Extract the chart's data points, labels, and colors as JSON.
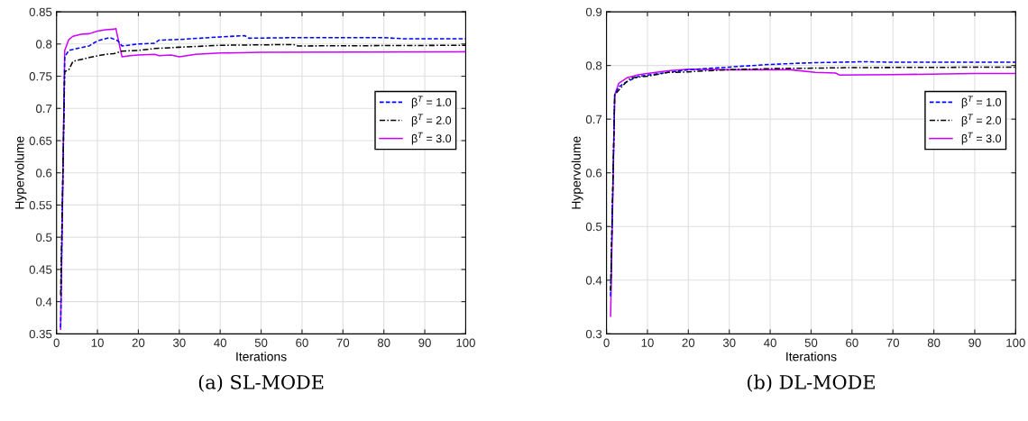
{
  "chart_data": [
    {
      "type": "line",
      "title": "(a) SL-MODE",
      "xlabel": "Iterations",
      "ylabel": "Hypervolume",
      "xlim": [
        0,
        100
      ],
      "xticks": [
        0,
        10,
        20,
        30,
        40,
        50,
        60,
        70,
        80,
        90,
        100
      ],
      "ylim": [
        0.35,
        0.85
      ],
      "yticks": [
        0.35,
        0.4,
        0.45,
        0.5,
        0.55,
        0.6,
        0.65,
        0.7,
        0.75,
        0.8,
        0.85
      ],
      "grid": true,
      "legend": "right",
      "series": [
        {
          "name": "β$^{T}$ = 1.0",
          "color": "#0000ff",
          "line_style": "dashed",
          "x": [
            1,
            2,
            3,
            5,
            8,
            10,
            13,
            15,
            16,
            20,
            24,
            25,
            30,
            40,
            46,
            47,
            60,
            70,
            80,
            85,
            100
          ],
          "values": [
            0.36,
            0.78,
            0.79,
            0.793,
            0.797,
            0.805,
            0.81,
            0.805,
            0.797,
            0.8,
            0.801,
            0.806,
            0.807,
            0.811,
            0.813,
            0.809,
            0.81,
            0.81,
            0.81,
            0.808,
            0.808
          ]
        },
        {
          "name": "β$^{T}$ = 2.0",
          "color": "#000000",
          "line_style": "dashdot",
          "x": [
            1,
            2,
            3,
            4,
            8,
            12,
            14,
            16,
            20,
            24,
            30,
            40,
            55,
            58,
            59,
            100
          ],
          "values": [
            0.41,
            0.757,
            0.76,
            0.773,
            0.779,
            0.784,
            0.785,
            0.789,
            0.79,
            0.793,
            0.795,
            0.798,
            0.799,
            0.799,
            0.797,
            0.798
          ]
        },
        {
          "name": "β$^{T}$ = 3.0",
          "color": "#cc00ff",
          "line_style": "solid",
          "x": [
            1,
            2,
            3,
            4,
            6,
            8,
            10,
            12,
            14,
            14.5,
            16,
            18,
            20,
            24,
            25,
            28,
            30,
            34,
            40,
            50,
            100
          ],
          "values": [
            0.357,
            0.79,
            0.807,
            0.812,
            0.815,
            0.816,
            0.82,
            0.822,
            0.823,
            0.824,
            0.78,
            0.782,
            0.783,
            0.784,
            0.782,
            0.783,
            0.78,
            0.784,
            0.786,
            0.787,
            0.788
          ]
        }
      ]
    },
    {
      "type": "line",
      "title": "(b) DL-MODE",
      "xlabel": "Iterations",
      "ylabel": "Hypervolume",
      "xlim": [
        0,
        100
      ],
      "xticks": [
        0,
        10,
        20,
        30,
        40,
        50,
        60,
        70,
        80,
        90,
        100
      ],
      "ylim": [
        0.3,
        0.9
      ],
      "yticks": [
        0.3,
        0.4,
        0.5,
        0.6,
        0.7,
        0.8,
        0.9
      ],
      "grid": true,
      "legend": "right",
      "series": [
        {
          "name": "β$^{T}$ = 1.0",
          "color": "#0000ff",
          "line_style": "dashed",
          "x": [
            1,
            2,
            3,
            5,
            8,
            15,
            20,
            30,
            40,
            50,
            63,
            70,
            100
          ],
          "values": [
            0.37,
            0.745,
            0.76,
            0.77,
            0.78,
            0.787,
            0.792,
            0.797,
            0.802,
            0.805,
            0.807,
            0.806,
            0.806
          ]
        },
        {
          "name": "β$^{T}$ = 2.0",
          "color": "#000000",
          "line_style": "dashdot",
          "x": [
            1,
            2,
            4,
            6,
            10,
            15,
            20,
            24,
            30,
            40,
            60,
            100
          ],
          "values": [
            0.38,
            0.745,
            0.763,
            0.777,
            0.78,
            0.787,
            0.788,
            0.79,
            0.792,
            0.794,
            0.796,
            0.797
          ]
        },
        {
          "name": "β$^{T}$ = 3.0",
          "color": "#cc00ff",
          "line_style": "solid",
          "x": [
            1,
            2,
            3,
            5,
            8,
            10,
            15,
            20,
            30,
            40,
            45,
            51,
            56,
            57,
            70,
            90,
            100
          ],
          "values": [
            0.333,
            0.745,
            0.767,
            0.777,
            0.783,
            0.785,
            0.79,
            0.793,
            0.792,
            0.792,
            0.792,
            0.787,
            0.786,
            0.782,
            0.783,
            0.785,
            0.785
          ]
        }
      ]
    }
  ]
}
